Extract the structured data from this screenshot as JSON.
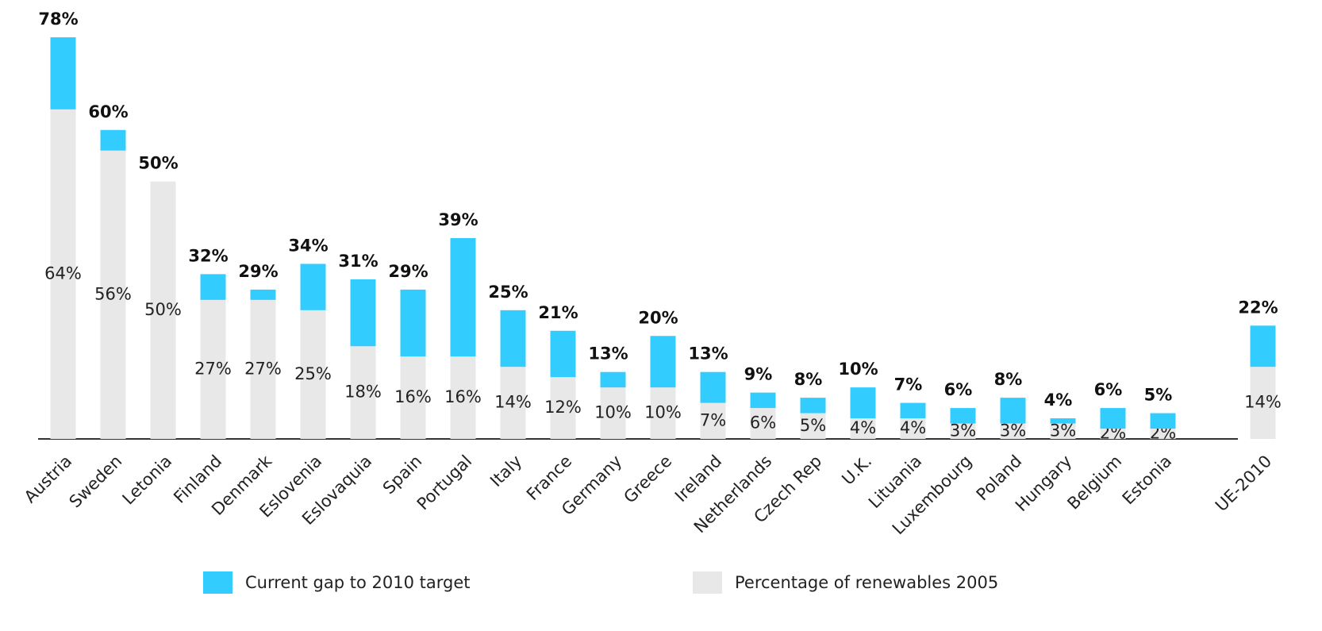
{
  "chart_data": {
    "type": "stacked_bar",
    "categories": [
      "Austria",
      "Sweden",
      "Letonia",
      "Finland",
      "Denmark",
      "Eslovenia",
      "Eslovaquia",
      "Spain",
      "Portugal",
      "Italy",
      "France",
      "Germany",
      "Greece",
      "Ireland",
      "Netherlands",
      "Czech Rep",
      "U.K.",
      "Lituania",
      "Luxembourg",
      "Poland",
      "Hungary",
      "Belgium",
      "Estonia",
      null,
      "UE-2010"
    ],
    "series": [
      {
        "name": "Percentage of renewables 2005",
        "color": "#e8e8e8",
        "values": [
          64,
          56,
          50,
          27,
          27,
          25,
          18,
          16,
          16,
          14,
          12,
          10,
          10,
          7,
          6,
          5,
          4,
          4,
          3,
          3,
          3,
          2,
          2,
          null,
          14
        ],
        "value_labels": [
          "64%",
          "56%",
          "50%",
          "27%",
          "27%",
          "25%",
          "18%",
          "16%",
          "16%",
          "14%",
          "12%",
          "10%",
          "10%",
          "7%",
          "6%",
          "5%",
          "4%",
          "4%",
          "3%",
          "3%",
          "3%",
          "2%",
          "2%",
          null,
          "14%"
        ]
      },
      {
        "name": "Current gap to 2010 target",
        "color": "#33ccff",
        "values": [
          14,
          4,
          0,
          5,
          2,
          9,
          13,
          13,
          23,
          11,
          9,
          3,
          10,
          6,
          3,
          3,
          6,
          3,
          3,
          5,
          1,
          4,
          3,
          null,
          8
        ]
      }
    ],
    "totals": [
      78,
      60,
      50,
      32,
      29,
      34,
      31,
      29,
      39,
      25,
      21,
      13,
      20,
      13,
      9,
      8,
      10,
      7,
      6,
      8,
      4,
      6,
      5,
      null,
      22
    ],
    "total_labels": [
      "78%",
      "60%",
      "50%",
      "32%",
      "29%",
      "34%",
      "31%",
      "29%",
      "39%",
      "25%",
      "21%",
      "13%",
      "20%",
      "13%",
      "9%",
      "8%",
      "10%",
      "7%",
      "6%",
      "8%",
      "4%",
      "6%",
      "5%",
      null,
      "22%"
    ],
    "ylim": [
      0,
      78
    ]
  }
}
